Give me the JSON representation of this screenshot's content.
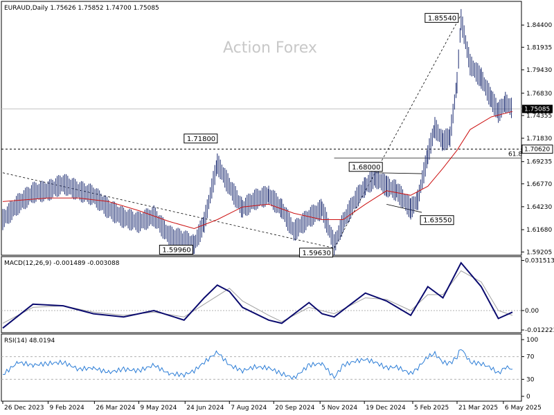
{
  "chart_data": {
    "type": "line",
    "symbol": "EURAUD",
    "timeframe": "Daily",
    "header": "EURAUD,Daily  1.75626 1.75852 1.74700 1.75085",
    "watermark": "Action Forex",
    "main": {
      "ylim": [
        1.5892,
        1.8695
      ],
      "yticks": [
        "1.84400",
        "1.81935",
        "1.79430",
        "1.76830",
        "1.74355",
        "1.71830",
        "1.69235",
        "1.66770",
        "1.64230",
        "1.61680",
        "1.59205"
      ],
      "current_price": "1.75085",
      "level_line": "1.70620",
      "fib_label": "61.8",
      "fib_level": 1.6963,
      "annotations": [
        {
          "text": "1.85540",
          "x": "25 Mar 2025",
          "y": 1.8554
        },
        {
          "text": "1.71800",
          "x": "26 Jul 2024",
          "y": 1.718
        },
        {
          "text": "1.68000",
          "x": "30 Dec 2024",
          "y": 1.68
        },
        {
          "text": "1.63550",
          "x": "3 Feb 2025",
          "y": 1.6355
        },
        {
          "text": "1.59960",
          "x": "3 Jul 2024",
          "y": 1.5996
        },
        {
          "text": "1.59630",
          "x": "19 Nov 2024",
          "y": 1.5963
        }
      ],
      "close_series": [
        [
          "26 Dec 2023",
          1.628
        ],
        [
          "10 Jan 2024",
          1.645
        ],
        [
          "25 Jan 2024",
          1.658
        ],
        [
          "9 Feb 2024",
          1.66
        ],
        [
          "24 Feb 2024",
          1.668
        ],
        [
          "10 Mar 2024",
          1.66
        ],
        [
          "25 Mar 2024",
          1.655
        ],
        [
          "9 Apr 2024",
          1.64
        ],
        [
          "24 Apr 2024",
          1.63
        ],
        [
          "9 May 2024",
          1.625
        ],
        [
          "24 May 2024",
          1.632
        ],
        [
          "8 Jun 2024",
          1.61
        ],
        [
          "23 Jun 2024",
          1.605
        ],
        [
          "3 Jul 2024",
          1.6
        ],
        [
          "13 Jul 2024",
          1.625
        ],
        [
          "26 Jul 2024",
          1.69
        ],
        [
          "7 Aug 2024",
          1.665
        ],
        [
          "20 Aug 2024",
          1.64
        ],
        [
          "1 Sep 2024",
          1.65
        ],
        [
          "15 Sep 2024",
          1.655
        ],
        [
          "28 Sep 2024",
          1.64
        ],
        [
          "10 Oct 2024",
          1.615
        ],
        [
          "25 Oct 2024",
          1.63
        ],
        [
          "7 Nov 2024",
          1.64
        ],
        [
          "19 Nov 2024",
          1.6
        ],
        [
          "28 Nov 2024",
          1.625
        ],
        [
          "10 Dec 2024",
          1.65
        ],
        [
          "20 Dec 2024",
          1.665
        ],
        [
          "30 Dec 2024",
          1.675
        ],
        [
          "10 Jan 2025",
          1.665
        ],
        [
          "20 Jan 2025",
          1.66
        ],
        [
          "3 Feb 2025",
          1.64
        ],
        [
          "10 Feb 2025",
          1.65
        ],
        [
          "20 Feb 2025",
          1.7
        ],
        [
          "27 Feb 2025",
          1.73
        ],
        [
          "7 Mar 2025",
          1.715
        ],
        [
          "14 Mar 2025",
          1.72
        ],
        [
          "21 Mar 2025",
          1.78
        ],
        [
          "25 Mar 2025",
          1.85
        ],
        [
          "3 Apr 2025",
          1.8
        ],
        [
          "14 Apr 2025",
          1.785
        ],
        [
          "24 Apr 2025",
          1.762
        ],
        [
          "1 May 2025",
          1.747
        ],
        [
          "8 May 2025",
          1.758
        ],
        [
          "15 May 2025",
          1.751
        ]
      ],
      "ma_series": [
        [
          "26 Dec 2023",
          1.648
        ],
        [
          "9 Feb 2024",
          1.652
        ],
        [
          "10 Mar 2024",
          1.652
        ],
        [
          "9 Apr 2024",
          1.648
        ],
        [
          "9 May 2024",
          1.638
        ],
        [
          "8 Jun 2024",
          1.626
        ],
        [
          "3 Jul 2024",
          1.618
        ],
        [
          "26 Jul 2024",
          1.628
        ],
        [
          "20 Aug 2024",
          1.642
        ],
        [
          "15 Sep 2024",
          1.645
        ],
        [
          "10 Oct 2024",
          1.635
        ],
        [
          "7 Nov 2024",
          1.628
        ],
        [
          "28 Nov 2024",
          1.628
        ],
        [
          "20 Dec 2024",
          1.645
        ],
        [
          "10 Jan 2025",
          1.66
        ],
        [
          "3 Feb 2025",
          1.655
        ],
        [
          "20 Feb 2025",
          1.665
        ],
        [
          "7 Mar 2025",
          1.685
        ],
        [
          "21 Mar 2025",
          1.705
        ],
        [
          "3 Apr 2025",
          1.728
        ],
        [
          "24 Apr 2025",
          1.742
        ],
        [
          "15 May 2025",
          1.748
        ]
      ]
    },
    "macd": {
      "label": "MACD(12,26,9) -0.001489 -0.003088",
      "ylim": [
        -0.0135,
        0.0335
      ],
      "yticks": [
        "0.031513",
        "0.00",
        "-0.012223"
      ],
      "macd_series": [
        [
          "26 Dec 2023",
          -0.011
        ],
        [
          "25 Jan 2024",
          0.004
        ],
        [
          "24 Feb 2024",
          0.003
        ],
        [
          "25 Mar 2024",
          -0.002
        ],
        [
          "24 Apr 2024",
          -0.004
        ],
        [
          "24 May 2024",
          0.0
        ],
        [
          "23 Jun 2024",
          -0.006
        ],
        [
          "13 Jul 2024",
          0.008
        ],
        [
          "26 Jul 2024",
          0.016
        ],
        [
          "7 Aug 2024",
          0.012
        ],
        [
          "20 Aug 2024",
          0.002
        ],
        [
          "15 Sep 2024",
          -0.006
        ],
        [
          "28 Sep 2024",
          -0.008
        ],
        [
          "25 Oct 2024",
          0.005
        ],
        [
          "7 Nov 2024",
          -0.002
        ],
        [
          "19 Nov 2024",
          -0.004
        ],
        [
          "20 Dec 2024",
          0.011
        ],
        [
          "10 Jan 2025",
          0.006
        ],
        [
          "3 Feb 2025",
          -0.003
        ],
        [
          "20 Feb 2025",
          0.015
        ],
        [
          "7 Mar 2025",
          0.008
        ],
        [
          "25 Mar 2025",
          0.03
        ],
        [
          "14 Apr 2025",
          0.015
        ],
        [
          "1 May 2025",
          -0.005
        ],
        [
          "15 May 2025",
          -0.001
        ]
      ],
      "signal_series": [
        [
          "26 Dec 2023",
          -0.008
        ],
        [
          "25 Jan 2024",
          0.002
        ],
        [
          "24 Feb 2024",
          0.003
        ],
        [
          "25 Mar 2024",
          -0.001
        ],
        [
          "24 Apr 2024",
          -0.003
        ],
        [
          "24 May 2024",
          -0.001
        ],
        [
          "23 Jun 2024",
          -0.004
        ],
        [
          "13 Jul 2024",
          0.004
        ],
        [
          "7 Aug 2024",
          0.014
        ],
        [
          "20 Aug 2024",
          0.006
        ],
        [
          "15 Sep 2024",
          -0.003
        ],
        [
          "28 Sep 2024",
          -0.007
        ],
        [
          "25 Oct 2024",
          0.002
        ],
        [
          "19 Nov 2024",
          -0.002
        ],
        [
          "20 Dec 2024",
          0.008
        ],
        [
          "10 Jan 2025",
          0.007
        ],
        [
          "3 Feb 2025",
          0.0
        ],
        [
          "20 Feb 2025",
          0.01
        ],
        [
          "7 Mar 2025",
          0.01
        ],
        [
          "25 Mar 2025",
          0.025
        ],
        [
          "14 Apr 2025",
          0.018
        ],
        [
          "1 May 2025",
          0.0
        ],
        [
          "15 May 2025",
          -0.003
        ]
      ]
    },
    "rsi": {
      "label": "RSI(14) 48.0194",
      "ylim": [
        0,
        100
      ],
      "yticks": [
        "100",
        "70",
        "30",
        "0"
      ],
      "levels": [
        70,
        30
      ],
      "series": [
        [
          "26 Dec 2023",
          38
        ],
        [
          "10 Jan 2024",
          60
        ],
        [
          "25 Jan 2024",
          55
        ],
        [
          "9 Feb 2024",
          58
        ],
        [
          "24 Feb 2024",
          60
        ],
        [
          "10 Mar 2024",
          48
        ],
        [
          "25 Mar 2024",
          50
        ],
        [
          "9 Apr 2024",
          42
        ],
        [
          "24 Apr 2024",
          48
        ],
        [
          "9 May 2024",
          45
        ],
        [
          "24 May 2024",
          55
        ],
        [
          "8 Jun 2024",
          40
        ],
        [
          "23 Jun 2024",
          38
        ],
        [
          "3 Jul 2024",
          45
        ],
        [
          "13 Jul 2024",
          60
        ],
        [
          "26 Jul 2024",
          78
        ],
        [
          "7 Aug 2024",
          55
        ],
        [
          "20 Aug 2024",
          45
        ],
        [
          "1 Sep 2024",
          52
        ],
        [
          "15 Sep 2024",
          50
        ],
        [
          "28 Sep 2024",
          40
        ],
        [
          "10 Oct 2024",
          32
        ],
        [
          "25 Oct 2024",
          55
        ],
        [
          "7 Nov 2024",
          58
        ],
        [
          "19 Nov 2024",
          33
        ],
        [
          "28 Nov 2024",
          55
        ],
        [
          "10 Dec 2024",
          62
        ],
        [
          "20 Dec 2024",
          65
        ],
        [
          "30 Dec 2024",
          60
        ],
        [
          "10 Jan 2025",
          50
        ],
        [
          "20 Jan 2025",
          52
        ],
        [
          "3 Feb 2025",
          40
        ],
        [
          "10 Feb 2025",
          50
        ],
        [
          "20 Feb 2025",
          70
        ],
        [
          "27 Feb 2025",
          75
        ],
        [
          "7 Mar 2025",
          60
        ],
        [
          "14 Mar 2025",
          58
        ],
        [
          "21 Mar 2025",
          70
        ],
        [
          "25 Mar 2025",
          85
        ],
        [
          "3 Apr 2025",
          60
        ],
        [
          "14 Apr 2025",
          58
        ],
        [
          "24 Apr 2025",
          50
        ],
        [
          "1 May 2025",
          40
        ],
        [
          "8 May 2025",
          52
        ],
        [
          "15 May 2025",
          48
        ]
      ]
    },
    "x_ticks": [
      "26 Dec 2023",
      "9 Feb 2024",
      "26 Mar 2024",
      "9 May 2024",
      "24 Jun 2024",
      "7 Aug 2024",
      "20 Sep 2024",
      "5 Nov 2024",
      "19 Dec 2024",
      "5 Feb 2025",
      "21 Mar 2025",
      "6 May 2025"
    ],
    "colors": {
      "price_bars": "#1a2a70",
      "moving_average": "#cc1010",
      "macd": "#0a0a6e",
      "signal": "#a0a0a0",
      "rsi": "#2a7cd6",
      "grid": "#b0b0b0"
    }
  }
}
